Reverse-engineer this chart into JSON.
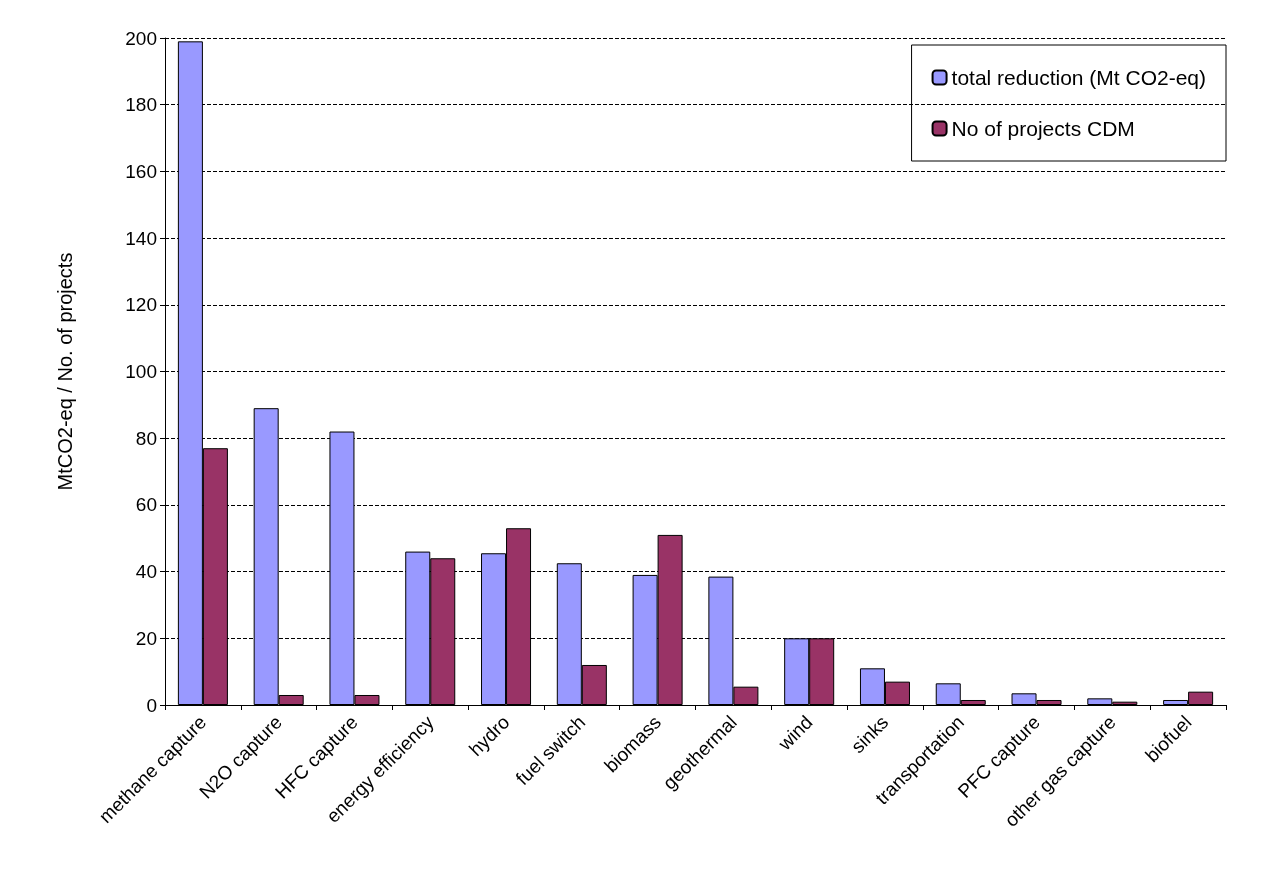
{
  "chart_data": {
    "type": "bar",
    "ylabel": "MtCO2-eq / No. of projects",
    "categories": [
      "methane capture",
      "N2O capture",
      "HFC capture",
      "energy efficiency",
      "hydro",
      "fuel switch",
      "biomass",
      "geothermal",
      "wind",
      "sinks",
      "transportation",
      "PFC capture",
      "other gas capture",
      "biofuel"
    ],
    "series": [
      {
        "name": "total reduction (Mt CO2-eq)",
        "color": "#9999ff",
        "values": [
          199,
          89,
          82,
          46,
          45.5,
          42.5,
          39,
          38.5,
          20,
          11,
          6.5,
          3.5,
          2,
          1.5
        ]
      },
      {
        "name": "No of projects CDM",
        "color": "#993366",
        "values": [
          77,
          3,
          3,
          44,
          53,
          12,
          51,
          5.5,
          20,
          7,
          1.5,
          1.5,
          1,
          4
        ]
      }
    ],
    "ylim": [
      0,
      200
    ],
    "yticks": [
      0,
      20,
      40,
      60,
      80,
      100,
      120,
      140,
      160,
      180,
      200
    ],
    "grid": "y",
    "legend": "top right"
  }
}
